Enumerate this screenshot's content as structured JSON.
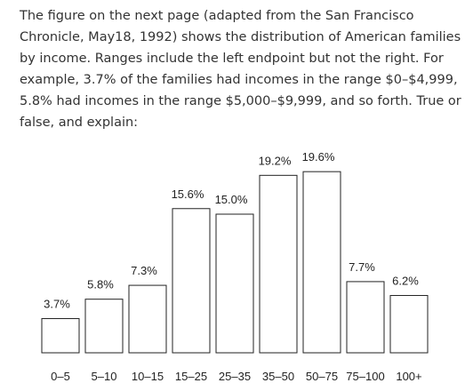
{
  "lines": [
    "The figure on the next page (adapted from the San Francisco",
    "Chronicle, May18, 1992) shows the distribution of American families",
    "by income. Ranges include the left endpoint but not the right. For",
    "example, 3.7% of the families had incomes in the range $0–$4,999,",
    "5.8% had incomes in the range $5,000–$9,999, and so forth. True or",
    "false, and explain:"
  ],
  "chart_data": {
    "type": "bar",
    "categories": [
      "0–5",
      "5–10",
      "10–15",
      "15–25",
      "25–35",
      "35–50",
      "50–75",
      "75–100",
      "100+"
    ],
    "values": [
      3.7,
      5.8,
      7.3,
      15.6,
      15.0,
      19.2,
      19.6,
      7.7,
      6.2
    ],
    "value_labels": [
      "3.7%",
      "5.8%",
      "7.3%",
      "15.6%",
      "15.0%",
      "19.2%",
      "19.6%",
      "7.7%",
      "6.2%"
    ],
    "color": "#ffffff"
  }
}
